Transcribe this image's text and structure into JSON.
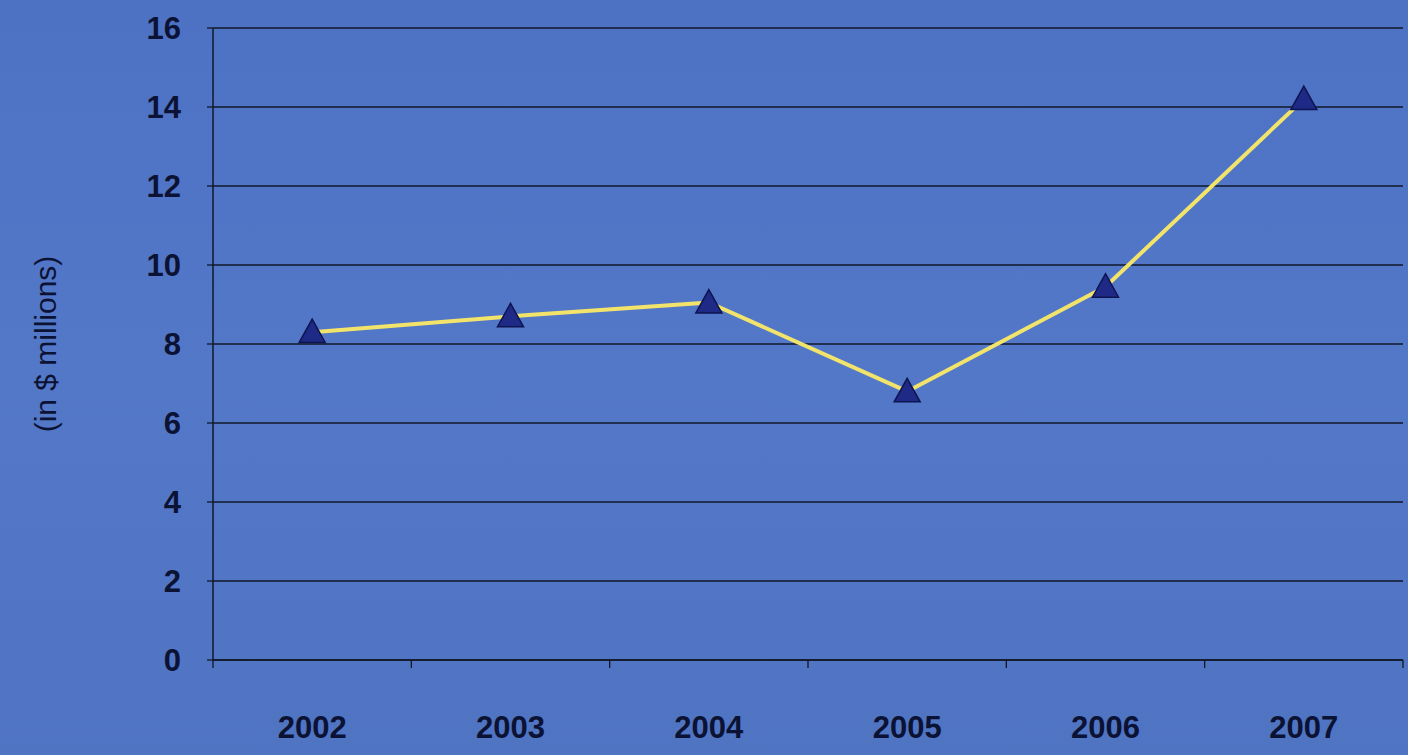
{
  "chart_data": {
    "type": "line",
    "y_label": "(in $ millions)",
    "categories": [
      "2002",
      "2003",
      "2004",
      "2005",
      "2006",
      "2007"
    ],
    "values": [
      8.3,
      8.7,
      9.05,
      6.8,
      9.45,
      14.2
    ],
    "color": "#f2e46a",
    "marker": "triangle",
    "ylim": [
      0,
      16
    ],
    "yticks": [
      0,
      2,
      4,
      6,
      8,
      10,
      12,
      14,
      16
    ],
    "grid": true
  }
}
